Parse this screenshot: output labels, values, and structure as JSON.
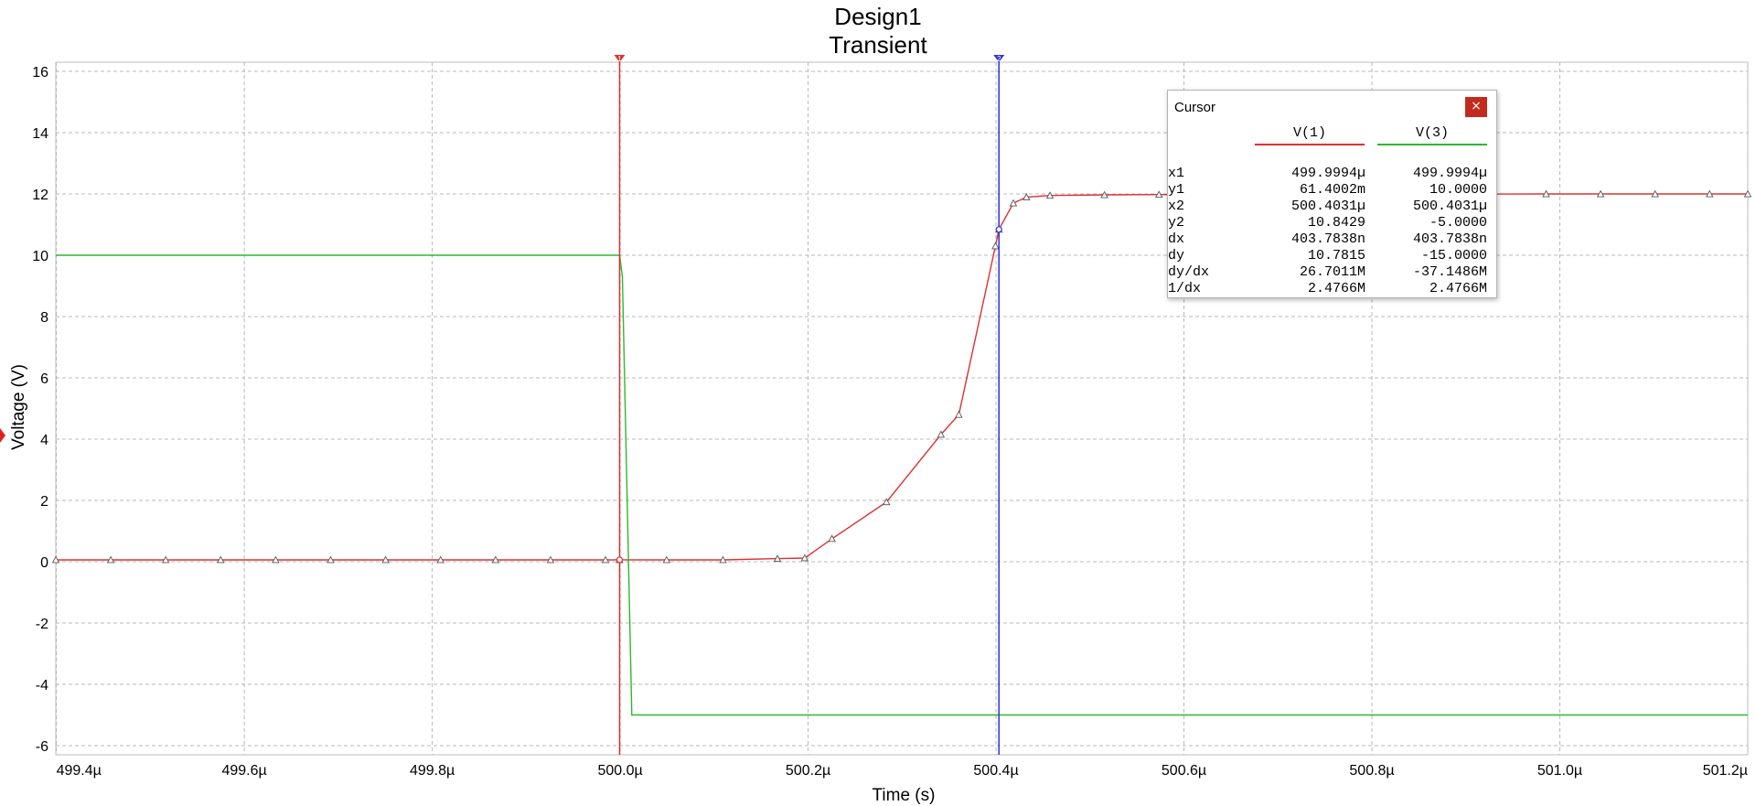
{
  "chart_data": {
    "type": "line",
    "title": "Design1",
    "subtitle": "Transient",
    "xlabel": "Time (s)",
    "ylabel": "Voltage (V)",
    "xlim": [
      499.3994,
      501.2
    ],
    "ylim": [
      -6.3,
      16.3
    ],
    "x_ticks": [
      499.4,
      499.6,
      499.8,
      500.0,
      500.2,
      500.4,
      500.6,
      500.8,
      501.0,
      501.2
    ],
    "x_tick_labels": [
      "499.4µ",
      "499.6µ",
      "499.8µ",
      "500.0µ",
      "500.2µ",
      "500.4µ",
      "500.6µ",
      "500.8µ",
      "501.0µ",
      "501.2µ"
    ],
    "y_ticks": [
      -6,
      -4,
      -2,
      0,
      2,
      4,
      6,
      8,
      10,
      12,
      14,
      16
    ],
    "y_tick_labels": [
      "-6",
      "-4",
      "-2",
      "0",
      "2",
      "4",
      "6",
      "8",
      "10",
      "12",
      "14",
      "16"
    ],
    "grid": true,
    "series": [
      {
        "name": "V(1)",
        "color": "#e03030",
        "marker": "triangle",
        "x": [
          499.3994,
          499.4579,
          499.5164,
          499.5749,
          499.6334,
          499.6919,
          499.7504,
          499.8089,
          499.8674,
          499.9259,
          499.9844,
          499.9994,
          500.0494,
          500.1094,
          500.1674,
          500.1964,
          500.2254,
          500.2834,
          500.3414,
          500.3604,
          500.3994,
          500.4031,
          500.4184,
          500.4324,
          500.4574,
          500.5154,
          500.5734,
          500.9854,
          501.0434,
          501.1014,
          501.1594,
          501.2
        ],
        "y": [
          0.06,
          0.06,
          0.06,
          0.06,
          0.06,
          0.06,
          0.06,
          0.06,
          0.06,
          0.06,
          0.06,
          0.0614,
          0.06,
          0.06,
          0.1,
          0.12,
          0.75,
          1.95,
          4.15,
          4.8,
          10.3,
          10.8429,
          11.7,
          11.9,
          11.95,
          11.97,
          11.98,
          12.0,
          12.0,
          12.0,
          12.0,
          12.0
        ]
      },
      {
        "name": "V(3)",
        "color": "#2eb82e",
        "marker": "none",
        "x": [
          499.3994,
          499.9994,
          500.0024,
          500.0124,
          501.2
        ],
        "y": [
          10.0,
          10.0,
          9.3,
          -5.0,
          -5.0
        ]
      }
    ],
    "cursors": [
      {
        "name": "cursor-1",
        "x": 499.9994,
        "color": "#e03030"
      },
      {
        "name": "cursor-2",
        "x": 500.4031,
        "color": "#3030e0"
      }
    ]
  },
  "cursor_panel": {
    "title": "Cursor",
    "close_glyph": "×",
    "columns": [
      {
        "name": "V(1)",
        "color": "#e03030"
      },
      {
        "name": "V(3)",
        "color": "#2eb82e"
      }
    ],
    "rows": [
      {
        "label": "x1",
        "v1": "499.9994µ",
        "v3": "499.9994µ"
      },
      {
        "label": "y1",
        "v1": "61.4002m",
        "v3": "10.0000"
      },
      {
        "label": "x2",
        "v1": "500.4031µ",
        "v3": "500.4031µ"
      },
      {
        "label": "y2",
        "v1": "10.8429",
        "v3": "-5.0000"
      },
      {
        "label": "dx",
        "v1": "403.7838n",
        "v3": "403.7838n"
      },
      {
        "label": "dy",
        "v1": "10.7815",
        "v3": "-15.0000"
      },
      {
        "label": "dy/dx",
        "v1": "26.7011M",
        "v3": "-37.1486M"
      },
      {
        "label": "1/dx",
        "v1": "2.4766M",
        "v3": "2.4766M"
      }
    ]
  }
}
